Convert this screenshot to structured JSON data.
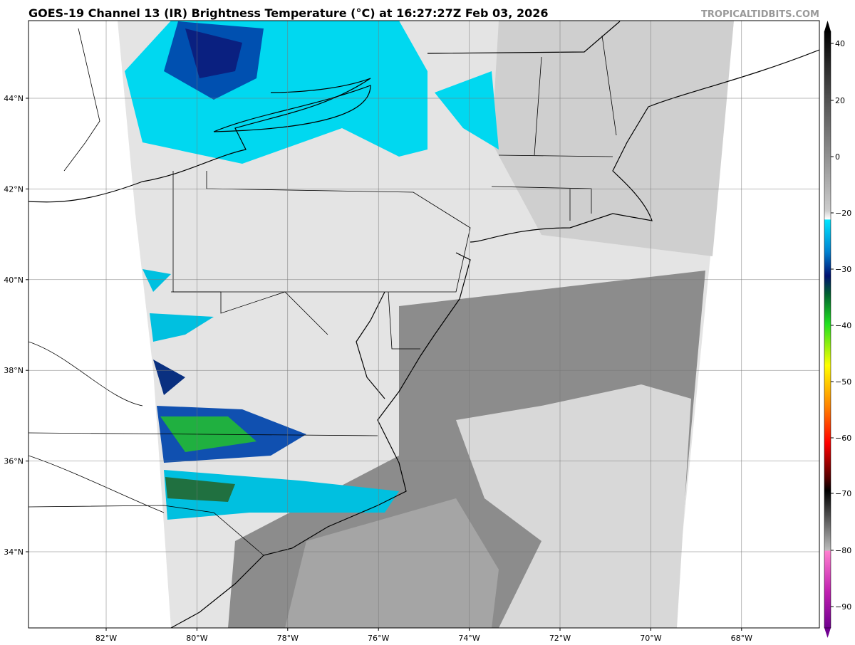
{
  "header": {
    "title": "GOES-19 Channel 13 (IR) Brightness Temperature (°C) at 16:27:27Z Feb 03, 2026",
    "credit": "TROPICALTIDBITS.COM"
  },
  "map": {
    "lat_labels": [
      "44°N",
      "42°N",
      "40°N",
      "38°N",
      "36°N",
      "34°N"
    ],
    "lon_labels": [
      "82°W",
      "80°W",
      "78°W",
      "76°W",
      "74°W",
      "72°W",
      "70°W",
      "68°W"
    ]
  },
  "colorbar": {
    "tick_labels": [
      "40",
      "20",
      "0",
      "−20",
      "−30",
      "−40",
      "−50",
      "−60",
      "−70",
      "−80",
      "−90"
    ]
  }
}
